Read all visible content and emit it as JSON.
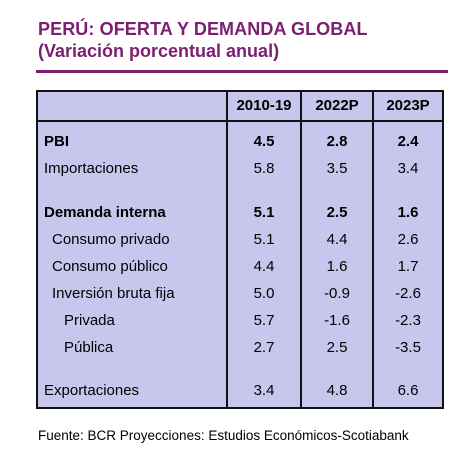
{
  "title": "PERÚ: OFERTA Y DEMANDA GLOBAL",
  "subtitle": "(Variación porcentual anual)",
  "columns": [
    "2010-19",
    "2022P",
    "2023P"
  ],
  "rows": [
    {
      "label": "PBI",
      "values": [
        "4.5",
        "2.8",
        "2.4"
      ],
      "bold": true
    },
    {
      "label": "Importaciones",
      "values": [
        "5.8",
        "3.5",
        "3.4"
      ],
      "bold": false
    },
    {
      "label": "Demanda interna",
      "values": [
        "5.1",
        "2.5",
        "1.6"
      ],
      "bold": true
    },
    {
      "label": "Consumo privado",
      "values": [
        "5.1",
        "4.4",
        "2.6"
      ],
      "bold": false
    },
    {
      "label": "Consumo público",
      "values": [
        "4.4",
        "1.6",
        "1.7"
      ],
      "bold": false
    },
    {
      "label": "Inversión bruta fija",
      "values": [
        "5.0",
        "-0.9",
        "-2.6"
      ],
      "bold": false
    },
    {
      "label": "Privada",
      "values": [
        "5.7",
        "-1.6",
        "-2.3"
      ],
      "bold": false
    },
    {
      "label": "Pública",
      "values": [
        "2.7",
        "2.5",
        "-3.5"
      ],
      "bold": false
    },
    {
      "label": "Exportaciones",
      "values": [
        "3.4",
        "4.8",
        "6.6"
      ],
      "bold": false
    }
  ],
  "source": "Fuente: BCR  Proyecciones: Estudios Económicos-Scotiabank",
  "colors": {
    "title": "#7b1f6e",
    "table_bg": "#c7c7ee"
  }
}
